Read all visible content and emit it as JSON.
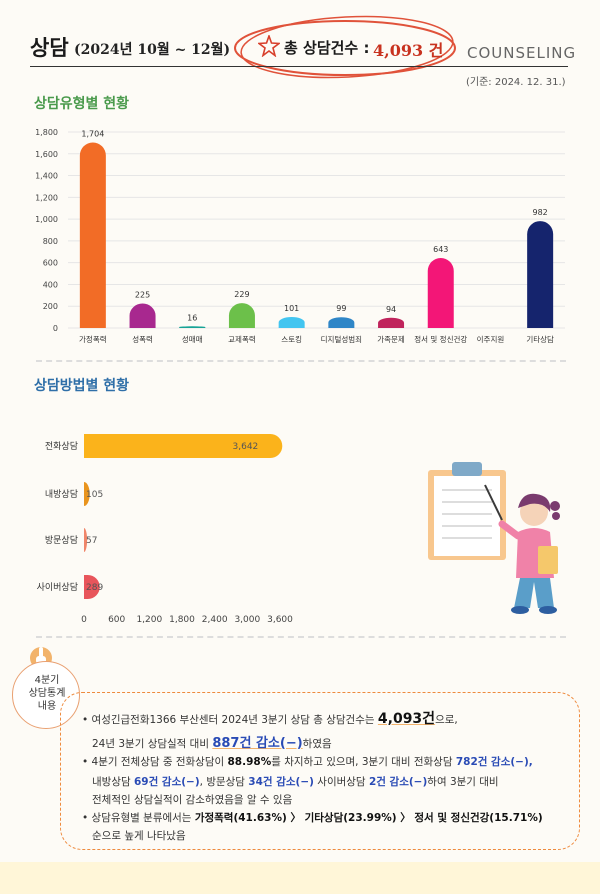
{
  "header": {
    "title": "상담",
    "period": "(2024년 10월 ~ 12월)",
    "total_label": "총 상담건수 :",
    "total_value": "4,093 건",
    "subtitle": "COUNSELING",
    "base_date": "(기준: 2024. 12. 31.)"
  },
  "section1_title": "상담유형별 현황",
  "section2_title": "상담방법별 현황",
  "colors": {
    "header_accent": "#c8321f",
    "section1": "#4a9a4c",
    "section2": "#2f6fa8",
    "summary_border": "#ee8a3d",
    "bar_horizontal": "#fbb31b"
  },
  "chart_data": [
    {
      "type": "bar",
      "categories": [
        "가정폭력",
        "성폭력",
        "성매매",
        "교제폭력",
        "스토킹",
        "디지털성범죄",
        "가족문제",
        "정서 및 정신건강",
        "이주지원",
        "기타상담"
      ],
      "values": [
        1704,
        225,
        16,
        229,
        101,
        99,
        94,
        643,
        0,
        982
      ],
      "value_labels": [
        "1,704",
        "225",
        "16",
        "229",
        "101",
        "99",
        "94",
        "643",
        "",
        "982"
      ],
      "colors": [
        "#f26c26",
        "#a8288f",
        "#17a396",
        "#6cc04a",
        "#43c5f0",
        "#2f86c7",
        "#c0245c",
        "#f31677",
        "#cccccc",
        "#15246d"
      ],
      "ylim": [
        0,
        1800
      ],
      "yticks": [
        "0",
        "200",
        "400",
        "600",
        "800",
        "1,000",
        "1,200",
        "1,400",
        "1,600",
        "1,800"
      ],
      "grid": true,
      "xlabel": "",
      "ylabel": ""
    },
    {
      "type": "bar",
      "orientation": "horizontal",
      "categories": [
        "전화상담",
        "내방상담",
        "방문상담",
        "사이버상담"
      ],
      "values": [
        3642,
        105,
        57,
        289
      ],
      "value_labels": [
        "3,642",
        "105",
        "57",
        "289"
      ],
      "colors": [
        "#fbb31b",
        "#e9941d",
        "#f0866a",
        "#e8555b"
      ],
      "xlim": [
        0,
        3800
      ],
      "xticks": [
        "0",
        "600",
        "1,200",
        "1,800",
        "2,400",
        "3,000",
        "3,600"
      ],
      "grid": false,
      "xlabel": "",
      "ylabel": ""
    }
  ],
  "summary": {
    "badge": [
      "4분기",
      "상담통계",
      "내용"
    ],
    "l1a": "• 여성긴급전화1366 부산센터 2024년 3분기 상담 총 상담건수는 ",
    "l1b": "4,093건",
    "l1c": "으로,",
    "l2a": "24년 3분기 상담실적 대비 ",
    "l2b": "887건 감소(−)",
    "l2c": "하였음",
    "l3a": "• 4분기 전체상담 중 전화상담이 ",
    "l3b": "88.98%",
    "l3c": "를 차지하고 있으며, 3분기 대비 전화상담 ",
    "l3d": "782건 감소(−),",
    "l4a": "내방상담 ",
    "l4b": "69건 감소(−)",
    "l4c": ", 방문상담 ",
    "l4d": "34건 감소(−)",
    "l4e": " 사이버상담 ",
    "l4f": "2건 감소(−)",
    "l4g": "하여 3분기 대비",
    "l5": "전체적인 상담실적이 감소하였음을 알 수 있음",
    "l6a": "• 상담유형별 분류에서는 ",
    "l6b": "가정폭력(41.63%) 〉 기타상담(23.99%) 〉 정서 및 정신건강(15.71%)",
    "l7": "순으로 높게 나타났음"
  }
}
